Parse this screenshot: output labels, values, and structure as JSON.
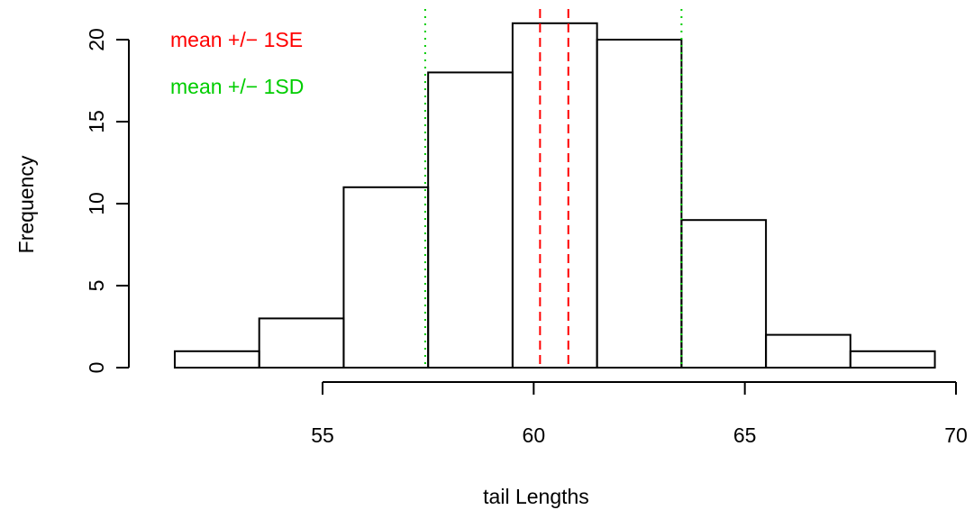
{
  "chart_data": {
    "type": "histogram",
    "xlabel": "tail Lengths",
    "ylabel": "Frequency",
    "bins": [
      {
        "start": 51.5,
        "end": 53.5,
        "count": 1
      },
      {
        "start": 53.5,
        "end": 55.5,
        "count": 3
      },
      {
        "start": 55.5,
        "end": 57.5,
        "count": 11
      },
      {
        "start": 57.5,
        "end": 59.5,
        "count": 18
      },
      {
        "start": 59.5,
        "end": 61.5,
        "count": 21
      },
      {
        "start": 61.5,
        "end": 63.5,
        "count": 20
      },
      {
        "start": 63.5,
        "end": 65.5,
        "count": 9
      },
      {
        "start": 65.5,
        "end": 67.5,
        "count": 2
      },
      {
        "start": 67.5,
        "end": 69.5,
        "count": 1
      }
    ],
    "xlim": [
      55,
      70
    ],
    "x_ticks": [
      "55",
      "60",
      "65",
      "70"
    ],
    "ylim": [
      0,
      21
    ],
    "y_ticks": [
      "0",
      "5",
      "10",
      "15",
      "20"
    ],
    "reference_lines": [
      {
        "label": "mean +/− 1SE",
        "color": "#ff0000",
        "style": "dashed",
        "values": [
          60.15,
          60.82
        ]
      },
      {
        "label": "mean +/− 1SD",
        "color": "#00cd00",
        "style": "dotted",
        "values": [
          57.43,
          63.5
        ]
      }
    ],
    "legend": {
      "position": "top-left",
      "entries": [
        {
          "label": "mean +/− 1SE",
          "color": "#ff0000"
        },
        {
          "label": "mean +/− 1SD",
          "color": "#00cd00"
        }
      ]
    },
    "grid": false
  }
}
